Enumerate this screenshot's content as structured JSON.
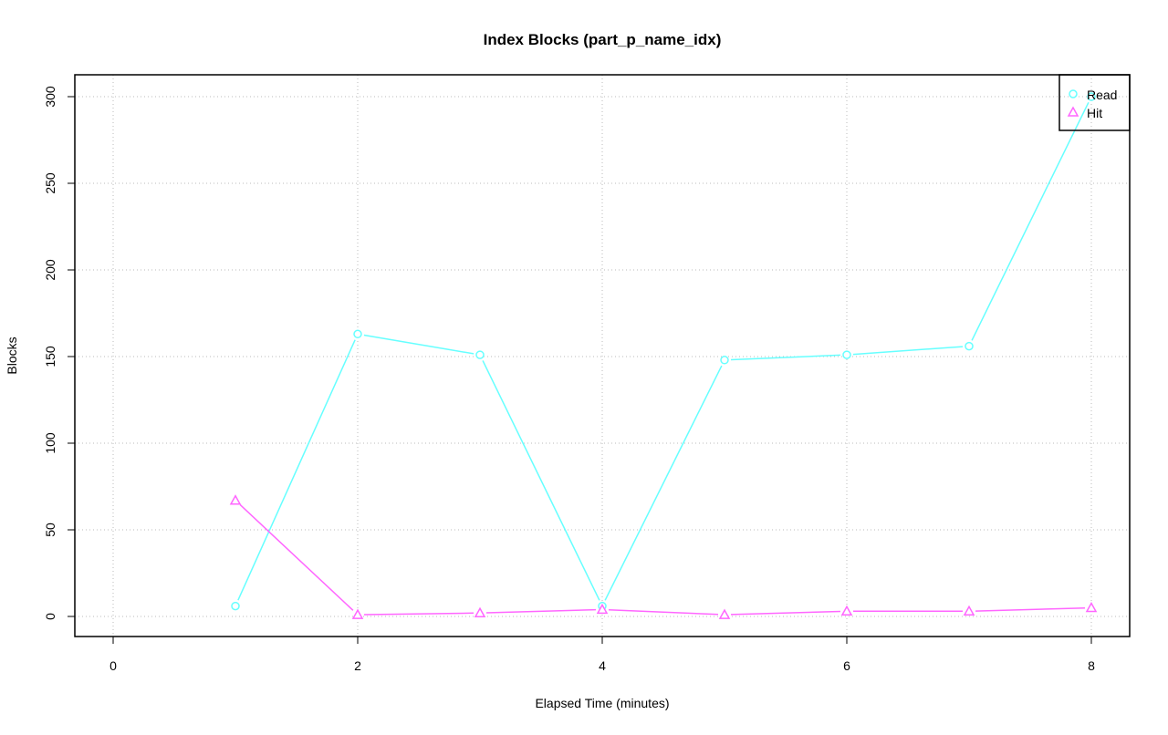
{
  "chart_data": {
    "type": "line",
    "title": "Index Blocks (part_p_name_idx)",
    "xlabel": "Elapsed Time (minutes)",
    "ylabel": "Blocks",
    "xlim": [
      0,
      8
    ],
    "ylim": [
      0,
      300
    ],
    "xticks": [
      "0",
      "2",
      "4",
      "6",
      "8"
    ],
    "yticks": [
      "0",
      "50",
      "100",
      "150",
      "200",
      "250",
      "300"
    ],
    "grid": true,
    "legend_position": "top-right",
    "x": [
      1,
      2,
      3,
      4,
      5,
      6,
      7,
      8
    ],
    "series": [
      {
        "name": "Read",
        "color": "#66ffff",
        "marker": "circle",
        "values": [
          6,
          163,
          151,
          6,
          148,
          151,
          156,
          300
        ]
      },
      {
        "name": "Hit",
        "color": "#ff66ff",
        "marker": "triangle",
        "values": [
          67,
          1,
          2,
          4,
          1,
          3,
          3,
          5
        ]
      }
    ]
  }
}
